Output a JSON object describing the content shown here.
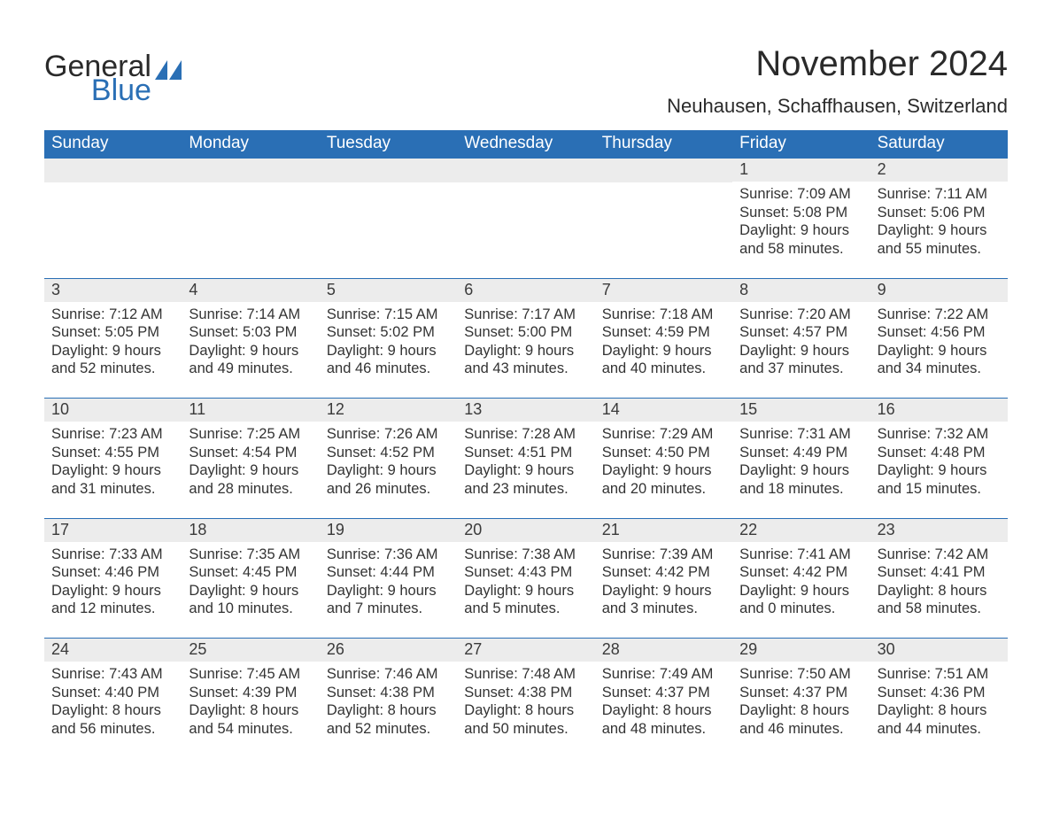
{
  "brand": {
    "name1": "General",
    "name2": "Blue"
  },
  "title": "November 2024",
  "location": "Neuhausen, Schaffhausen, Switzerland",
  "colors": {
    "header_bg": "#2a6fb5",
    "header_text": "#ffffff",
    "daynum_bg": "#ececec",
    "text": "#333333",
    "rule": "#2a6fb5",
    "page_bg": "#ffffff"
  },
  "weekdays": [
    "Sunday",
    "Monday",
    "Tuesday",
    "Wednesday",
    "Thursday",
    "Friday",
    "Saturday"
  ],
  "weeks": [
    [
      {
        "n": "",
        "sr": "",
        "ss": "",
        "dl": ""
      },
      {
        "n": "",
        "sr": "",
        "ss": "",
        "dl": ""
      },
      {
        "n": "",
        "sr": "",
        "ss": "",
        "dl": ""
      },
      {
        "n": "",
        "sr": "",
        "ss": "",
        "dl": ""
      },
      {
        "n": "",
        "sr": "",
        "ss": "",
        "dl": ""
      },
      {
        "n": "1",
        "sr": "Sunrise: 7:09 AM",
        "ss": "Sunset: 5:08 PM",
        "dl": "Daylight: 9 hours and 58 minutes."
      },
      {
        "n": "2",
        "sr": "Sunrise: 7:11 AM",
        "ss": "Sunset: 5:06 PM",
        "dl": "Daylight: 9 hours and 55 minutes."
      }
    ],
    [
      {
        "n": "3",
        "sr": "Sunrise: 7:12 AM",
        "ss": "Sunset: 5:05 PM",
        "dl": "Daylight: 9 hours and 52 minutes."
      },
      {
        "n": "4",
        "sr": "Sunrise: 7:14 AM",
        "ss": "Sunset: 5:03 PM",
        "dl": "Daylight: 9 hours and 49 minutes."
      },
      {
        "n": "5",
        "sr": "Sunrise: 7:15 AM",
        "ss": "Sunset: 5:02 PM",
        "dl": "Daylight: 9 hours and 46 minutes."
      },
      {
        "n": "6",
        "sr": "Sunrise: 7:17 AM",
        "ss": "Sunset: 5:00 PM",
        "dl": "Daylight: 9 hours and 43 minutes."
      },
      {
        "n": "7",
        "sr": "Sunrise: 7:18 AM",
        "ss": "Sunset: 4:59 PM",
        "dl": "Daylight: 9 hours and 40 minutes."
      },
      {
        "n": "8",
        "sr": "Sunrise: 7:20 AM",
        "ss": "Sunset: 4:57 PM",
        "dl": "Daylight: 9 hours and 37 minutes."
      },
      {
        "n": "9",
        "sr": "Sunrise: 7:22 AM",
        "ss": "Sunset: 4:56 PM",
        "dl": "Daylight: 9 hours and 34 minutes."
      }
    ],
    [
      {
        "n": "10",
        "sr": "Sunrise: 7:23 AM",
        "ss": "Sunset: 4:55 PM",
        "dl": "Daylight: 9 hours and 31 minutes."
      },
      {
        "n": "11",
        "sr": "Sunrise: 7:25 AM",
        "ss": "Sunset: 4:54 PM",
        "dl": "Daylight: 9 hours and 28 minutes."
      },
      {
        "n": "12",
        "sr": "Sunrise: 7:26 AM",
        "ss": "Sunset: 4:52 PM",
        "dl": "Daylight: 9 hours and 26 minutes."
      },
      {
        "n": "13",
        "sr": "Sunrise: 7:28 AM",
        "ss": "Sunset: 4:51 PM",
        "dl": "Daylight: 9 hours and 23 minutes."
      },
      {
        "n": "14",
        "sr": "Sunrise: 7:29 AM",
        "ss": "Sunset: 4:50 PM",
        "dl": "Daylight: 9 hours and 20 minutes."
      },
      {
        "n": "15",
        "sr": "Sunrise: 7:31 AM",
        "ss": "Sunset: 4:49 PM",
        "dl": "Daylight: 9 hours and 18 minutes."
      },
      {
        "n": "16",
        "sr": "Sunrise: 7:32 AM",
        "ss": "Sunset: 4:48 PM",
        "dl": "Daylight: 9 hours and 15 minutes."
      }
    ],
    [
      {
        "n": "17",
        "sr": "Sunrise: 7:33 AM",
        "ss": "Sunset: 4:46 PM",
        "dl": "Daylight: 9 hours and 12 minutes."
      },
      {
        "n": "18",
        "sr": "Sunrise: 7:35 AM",
        "ss": "Sunset: 4:45 PM",
        "dl": "Daylight: 9 hours and 10 minutes."
      },
      {
        "n": "19",
        "sr": "Sunrise: 7:36 AM",
        "ss": "Sunset: 4:44 PM",
        "dl": "Daylight: 9 hours and 7 minutes."
      },
      {
        "n": "20",
        "sr": "Sunrise: 7:38 AM",
        "ss": "Sunset: 4:43 PM",
        "dl": "Daylight: 9 hours and 5 minutes."
      },
      {
        "n": "21",
        "sr": "Sunrise: 7:39 AM",
        "ss": "Sunset: 4:42 PM",
        "dl": "Daylight: 9 hours and 3 minutes."
      },
      {
        "n": "22",
        "sr": "Sunrise: 7:41 AM",
        "ss": "Sunset: 4:42 PM",
        "dl": "Daylight: 9 hours and 0 minutes."
      },
      {
        "n": "23",
        "sr": "Sunrise: 7:42 AM",
        "ss": "Sunset: 4:41 PM",
        "dl": "Daylight: 8 hours and 58 minutes."
      }
    ],
    [
      {
        "n": "24",
        "sr": "Sunrise: 7:43 AM",
        "ss": "Sunset: 4:40 PM",
        "dl": "Daylight: 8 hours and 56 minutes."
      },
      {
        "n": "25",
        "sr": "Sunrise: 7:45 AM",
        "ss": "Sunset: 4:39 PM",
        "dl": "Daylight: 8 hours and 54 minutes."
      },
      {
        "n": "26",
        "sr": "Sunrise: 7:46 AM",
        "ss": "Sunset: 4:38 PM",
        "dl": "Daylight: 8 hours and 52 minutes."
      },
      {
        "n": "27",
        "sr": "Sunrise: 7:48 AM",
        "ss": "Sunset: 4:38 PM",
        "dl": "Daylight: 8 hours and 50 minutes."
      },
      {
        "n": "28",
        "sr": "Sunrise: 7:49 AM",
        "ss": "Sunset: 4:37 PM",
        "dl": "Daylight: 8 hours and 48 minutes."
      },
      {
        "n": "29",
        "sr": "Sunrise: 7:50 AM",
        "ss": "Sunset: 4:37 PM",
        "dl": "Daylight: 8 hours and 46 minutes."
      },
      {
        "n": "30",
        "sr": "Sunrise: 7:51 AM",
        "ss": "Sunset: 4:36 PM",
        "dl": "Daylight: 8 hours and 44 minutes."
      }
    ]
  ]
}
